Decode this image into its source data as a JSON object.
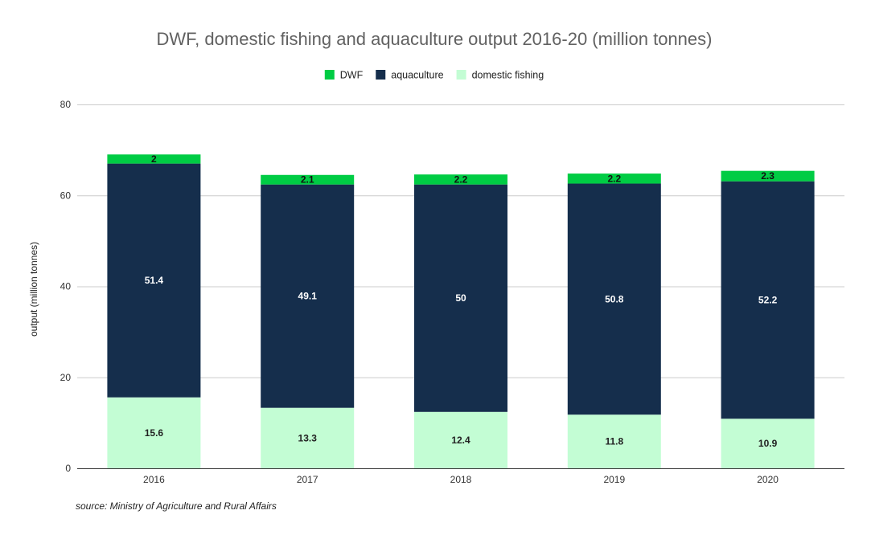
{
  "chart_data": {
    "type": "bar",
    "stacked": true,
    "title": "DWF, domestic fishing and aquaculture output 2016-20 (million tonnes)",
    "xlabel": "",
    "ylabel": "output (million tonnes)",
    "ylim": [
      0,
      80
    ],
    "yticks": [
      "0",
      "20",
      "40",
      "60",
      "80"
    ],
    "categories": [
      "2016",
      "2017",
      "2018",
      "2019",
      "2020"
    ],
    "grid": true,
    "legend_position": "top",
    "legend_order": [
      "DWF",
      "aquaculture",
      "domestic fishing"
    ],
    "series": [
      {
        "name": "domestic fishing",
        "color": "#c3fdd4",
        "label_color": "#222222",
        "values": [
          15.6,
          13.3,
          12.4,
          11.8,
          10.9
        ],
        "labels": [
          "15.6",
          "13.3",
          "12.4",
          "11.8",
          "10.9"
        ]
      },
      {
        "name": "aquaculture",
        "color": "#152e4c",
        "label_color": "#ffffff",
        "values": [
          51.4,
          49.1,
          50,
          50.8,
          52.2
        ],
        "labels": [
          "51.4",
          "49.1",
          "50",
          "50.8",
          "52.2"
        ]
      },
      {
        "name": "DWF",
        "color": "#00cc44",
        "label_color": "#111111",
        "values": [
          2,
          2.1,
          2.2,
          2.2,
          2.3
        ],
        "labels": [
          "2",
          "2.1",
          "2.2",
          "2.2",
          "2.3"
        ]
      }
    ],
    "source": "source: Ministry of Agriculture and Rural Affairs"
  }
}
